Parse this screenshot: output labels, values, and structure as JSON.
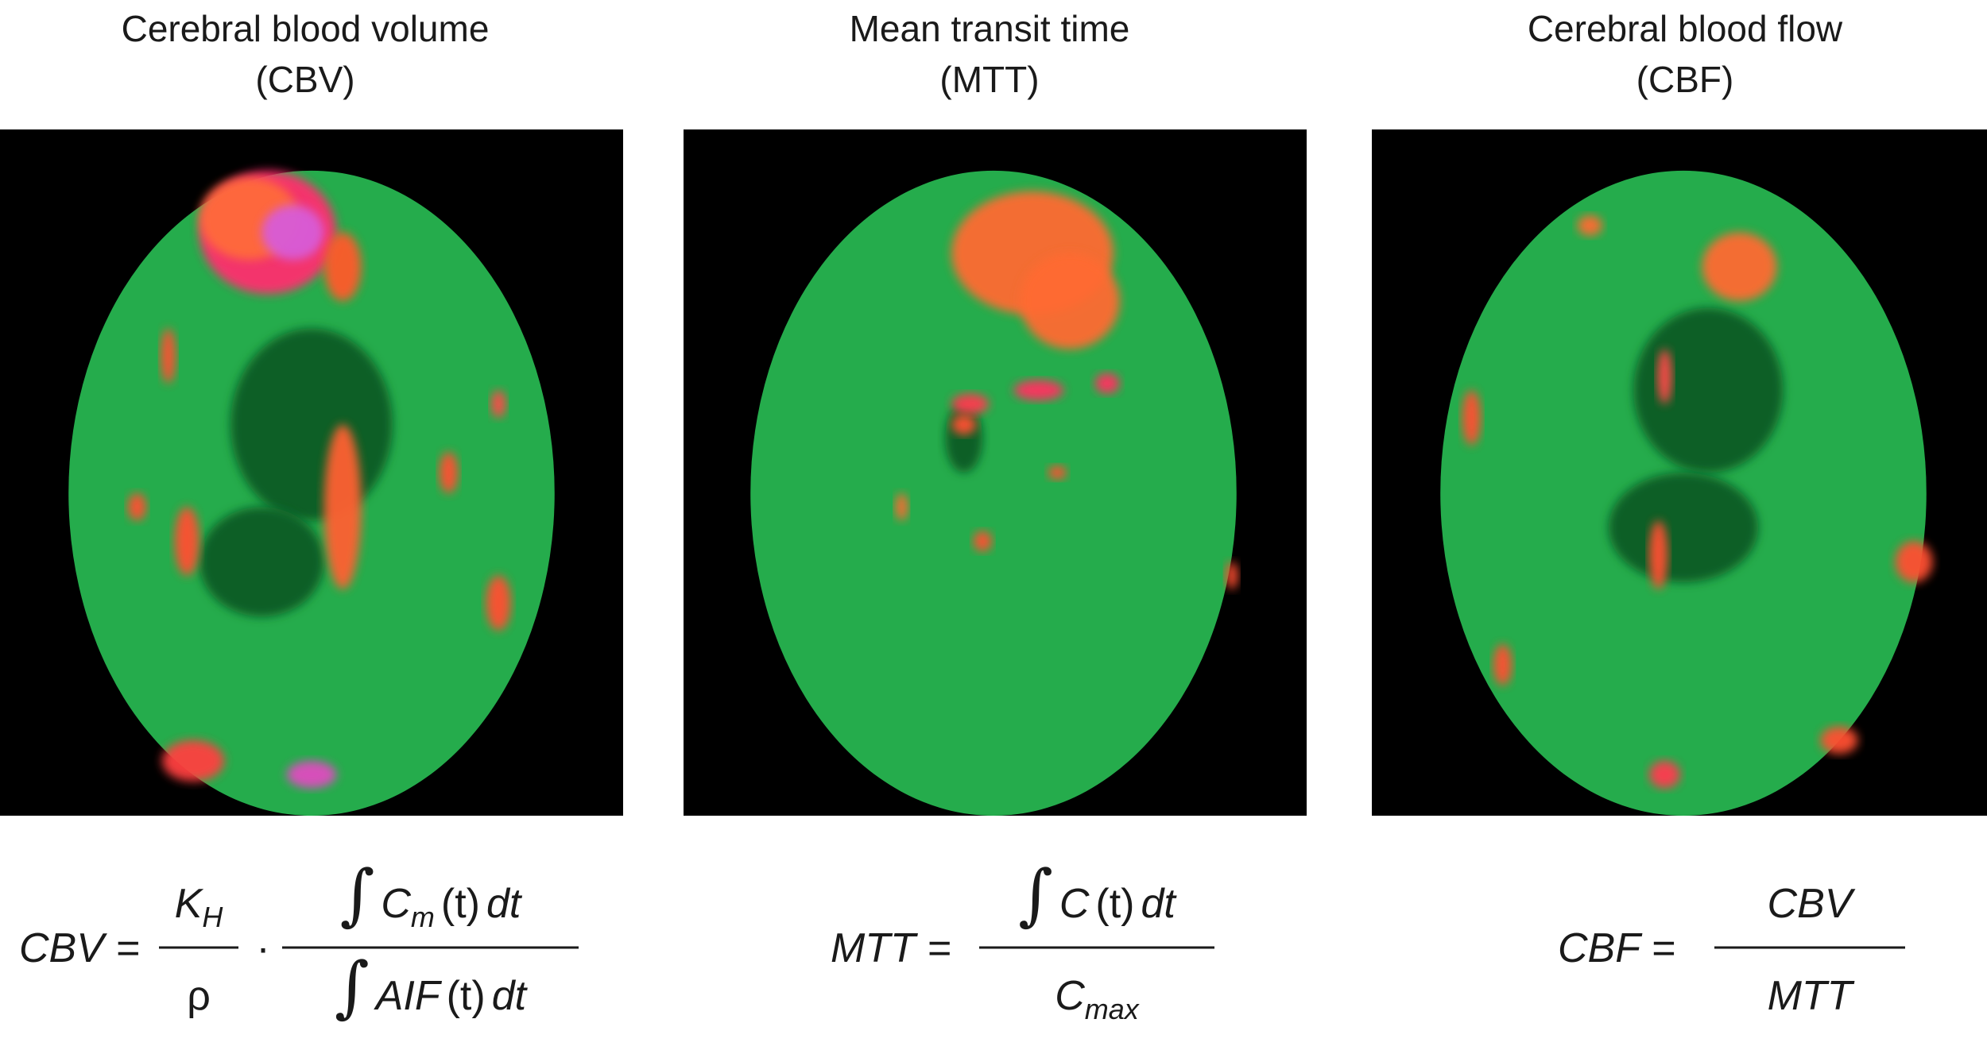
{
  "panels": [
    {
      "title": "Cerebral blood volume",
      "abbrev": "(CBV)",
      "formula": {
        "lhs": "CBV =",
        "operator": "·",
        "fractions": [
          {
            "num": [
              {
                "text": "K",
                "italic": true
              },
              {
                "text": "H",
                "italic": true,
                "sub": true
              }
            ],
            "den": [
              {
                "text": "ρ"
              }
            ]
          },
          {
            "num": [
              {
                "text": "∫",
                "big": true
              },
              {
                "text": "C",
                "italic": true
              },
              {
                "text": "m",
                "italic": true,
                "sub": true
              },
              {
                "text": "(t)"
              },
              {
                "text": "dt",
                "italic": true
              }
            ],
            "den": [
              {
                "text": "∫",
                "big": true
              },
              {
                "text": "AIF",
                "italic": true
              },
              {
                "text": "(t)"
              },
              {
                "text": "dt",
                "italic": true
              }
            ]
          }
        ]
      }
    },
    {
      "title": "Mean transit time",
      "abbrev": "(MTT)",
      "formula": {
        "lhs": "MTT =",
        "fractions": [
          {
            "num": [
              {
                "text": "∫",
                "big": true
              },
              {
                "text": "C",
                "italic": true
              },
              {
                "text": "(t)"
              },
              {
                "text": "dt",
                "italic": true
              }
            ],
            "den": [
              {
                "text": "C",
                "italic": true
              },
              {
                "text": "max",
                "italic": true,
                "sub": true
              }
            ]
          }
        ]
      }
    },
    {
      "title": "Cerebral blood flow",
      "abbrev": "(CBF)",
      "formula": {
        "lhs": "CBF =",
        "fractions": [
          {
            "num": [
              {
                "text": "CBV",
                "italic": true
              }
            ],
            "den": [
              {
                "text": "MTT",
                "italic": true
              }
            ]
          }
        ]
      }
    }
  ]
}
